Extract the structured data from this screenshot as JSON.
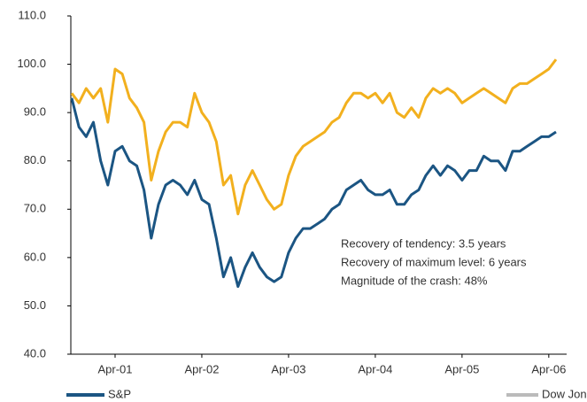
{
  "chart_data": {
    "type": "line",
    "categories": [
      null,
      null,
      null,
      null,
      null,
      null,
      "Apr-01",
      null,
      null,
      null,
      null,
      null,
      null,
      null,
      null,
      null,
      null,
      null,
      "Apr-02",
      null,
      null,
      null,
      null,
      null,
      null,
      null,
      null,
      null,
      null,
      null,
      "Apr-03",
      null,
      null,
      null,
      null,
      null,
      null,
      null,
      null,
      null,
      null,
      null,
      "Apr-04",
      null,
      null,
      null,
      null,
      null,
      null,
      null,
      null,
      null,
      null,
      null,
      "Apr-05",
      null,
      null,
      null,
      null,
      null,
      null,
      null,
      null,
      null,
      null,
      null,
      "Apr-06",
      null
    ],
    "series": [
      {
        "name": "S&P",
        "color": "#1b5583",
        "values": [
          93,
          87,
          85,
          88,
          80,
          75,
          82,
          83,
          80,
          79,
          74,
          64,
          71,
          75,
          76,
          75,
          73,
          76,
          72,
          71,
          64,
          56,
          60,
          54,
          58,
          61,
          58,
          56,
          55,
          56,
          61,
          64,
          66,
          66,
          67,
          68,
          70,
          71,
          74,
          75,
          76,
          74,
          73,
          73,
          74,
          71,
          71,
          73,
          74,
          77,
          79,
          77,
          79,
          78,
          76,
          78,
          78,
          81,
          80,
          80,
          78,
          82,
          82,
          83,
          84,
          85,
          85,
          86
        ]
      },
      {
        "name": "Dow Jones",
        "color": "#f2b01e",
        "legend_color": "#bbbbbb",
        "values": [
          94,
          92,
          95,
          93,
          95,
          88,
          99,
          98,
          93,
          91,
          88,
          76,
          82,
          86,
          88,
          88,
          87,
          94,
          90,
          88,
          84,
          75,
          77,
          69,
          75,
          78,
          75,
          72,
          70,
          71,
          77,
          81,
          83,
          84,
          85,
          86,
          88,
          89,
          92,
          94,
          94,
          93,
          94,
          92,
          94,
          90,
          89,
          91,
          89,
          93,
          95,
          94,
          95,
          94,
          92,
          93,
          94,
          95,
          94,
          93,
          92,
          95,
          96,
          96,
          97,
          98,
          99,
          101
        ]
      }
    ],
    "ylim": [
      40,
      110
    ],
    "yticks": [
      {
        "value": 40,
        "label": "40.0"
      },
      {
        "value": 50,
        "label": "50.0"
      },
      {
        "value": 60,
        "label": "60.0"
      },
      {
        "value": 70,
        "label": "70.0"
      },
      {
        "value": 80,
        "label": "80.0"
      },
      {
        "value": 90,
        "label": "90.0"
      },
      {
        "value": 100,
        "label": "100.0"
      },
      {
        "value": 110,
        "label": "110.0"
      }
    ],
    "annotations": [
      "Recovery of tendency: 3.5 years",
      "Recovery of maximum level: 6 years",
      "Magnitude of the crash: 48%"
    ],
    "grid": false
  }
}
